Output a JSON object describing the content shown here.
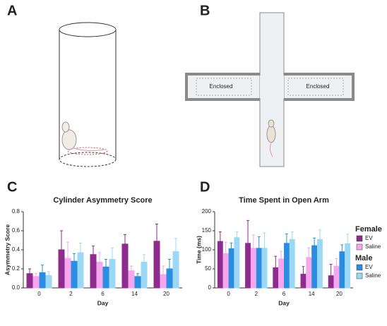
{
  "panels": {
    "a": {
      "label": "A"
    },
    "b": {
      "label": "B",
      "arms": [
        "Enclosed",
        "Enclosed"
      ]
    }
  },
  "legend": {
    "groups": [
      {
        "title": "Female",
        "entries": [
          {
            "name": "EV",
            "color": "#8e2c8e"
          },
          {
            "name": "Saline",
            "color": "#f5a6ef"
          }
        ]
      },
      {
        "title": "Male",
        "entries": [
          {
            "name": "EV",
            "color": "#2a8de0"
          },
          {
            "name": "Saline",
            "color": "#9ad8f5"
          }
        ]
      }
    ]
  },
  "chart_data": [
    {
      "type": "bar",
      "panel": "C",
      "title": "Cylinder Asymmetry Score",
      "x_label": "Day",
      "y_label": "Asymmetry Score",
      "categories": [
        "0",
        "2",
        "6",
        "14",
        "20"
      ],
      "ylim": [
        0,
        0.8
      ],
      "yticks": [
        {
          "value": 0,
          "label": "0.0"
        },
        0.2,
        0.4,
        0.6,
        0.8
      ],
      "series": [
        {
          "color": "#8e2c8e",
          "values": [
            0.15,
            0.4,
            0.35,
            0.46,
            0.49
          ],
          "errors": [
            0.05,
            0.2,
            0.09,
            0.1,
            0.18
          ]
        },
        {
          "color": "#f5a6ef",
          "values": [
            0.12,
            0.31,
            0.27,
            0.18,
            0.14
          ],
          "errors": [
            0.03,
            0.17,
            0.1,
            0.05,
            0.09
          ]
        },
        {
          "color": "#2a8de0",
          "values": [
            0.16,
            0.28,
            0.22,
            0.12,
            0.2
          ],
          "errors": [
            0.08,
            0.08,
            0.08,
            0.03,
            0.1
          ]
        },
        {
          "color": "#9ad8f5",
          "values": [
            0.13,
            0.37,
            0.3,
            0.27,
            0.38
          ],
          "errors": [
            0.04,
            0.1,
            0.12,
            0.08,
            0.14
          ]
        }
      ]
    },
    {
      "type": "bar",
      "panel": "D",
      "title": "Time Spent in Open Arm",
      "x_label": "Day",
      "y_label": "Time (ms)",
      "categories": [
        "0",
        "2",
        "6",
        "14",
        "20"
      ],
      "ylim": [
        0,
        200
      ],
      "yticks": [
        0,
        50,
        100,
        150,
        200
      ],
      "series": [
        {
          "color": "#8e2c8e",
          "values": [
            122,
            117,
            53,
            36,
            32
          ],
          "errors": [
            25,
            60,
            30,
            20,
            30
          ]
        },
        {
          "color": "#f5a6ef",
          "values": [
            90,
            104,
            76,
            80,
            57
          ],
          "errors": [
            30,
            35,
            20,
            25,
            20
          ]
        },
        {
          "color": "#2a8de0",
          "values": [
            103,
            104,
            117,
            111,
            95
          ],
          "errors": [
            15,
            30,
            25,
            20,
            18
          ]
        },
        {
          "color": "#9ad8f5",
          "values": [
            132,
            104,
            127,
            127,
            116
          ],
          "errors": [
            15,
            40,
            20,
            25,
            25
          ]
        }
      ]
    }
  ]
}
